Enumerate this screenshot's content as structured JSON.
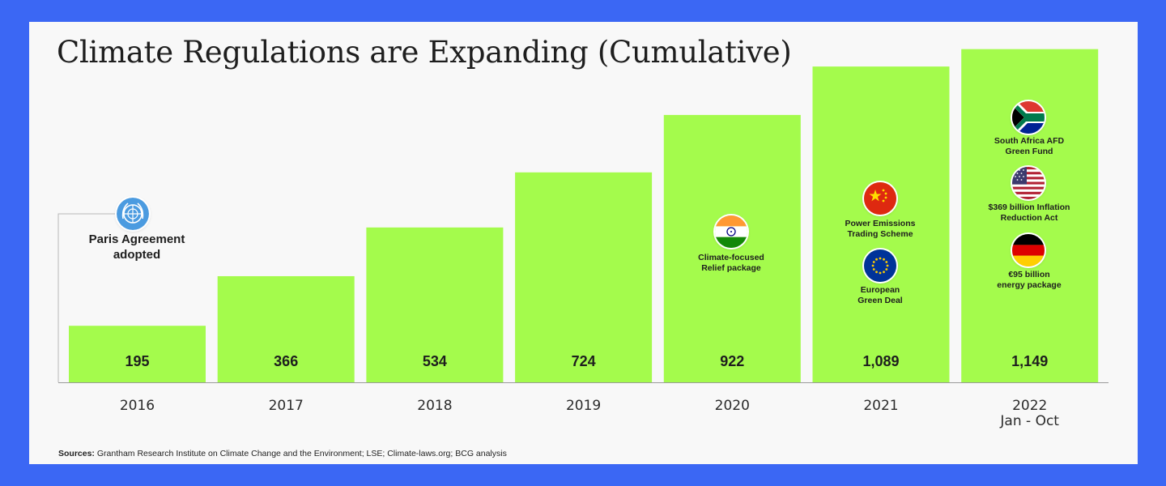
{
  "title": "Climate Regulations are Expanding (Cumulative)",
  "colors": {
    "background": "#3b67f4",
    "card": "#f8f8f8",
    "bar": "#a4fb4c",
    "text": "#1e1e1e"
  },
  "chart_data": {
    "type": "bar",
    "categories": [
      "2016",
      "2017",
      "2018",
      "2019",
      "2020",
      "2021",
      "2022"
    ],
    "category_sublabels": [
      "",
      "",
      "",
      "",
      "",
      "",
      "Jan - Oct"
    ],
    "values": [
      195,
      366,
      534,
      724,
      922,
      1089,
      1149
    ],
    "value_labels": [
      "195",
      "366",
      "534",
      "724",
      "922",
      "1,089",
      "1,149"
    ],
    "grid": false,
    "ylim": [
      0,
      1400
    ],
    "annotations": [
      {
        "category": "2016",
        "icon": "un-emblem-icon",
        "text": "Paris Agreement\nadopted"
      },
      {
        "category": "2020",
        "icon": "india-flag-icon",
        "text": "Climate-focused\nRelief package"
      },
      {
        "category": "2021",
        "icon": "china-flag-icon",
        "text": "Power Emissions\nTrading Scheme"
      },
      {
        "category": "2021",
        "icon": "eu-flag-icon",
        "text": "European\nGreen Deal"
      },
      {
        "category": "2022",
        "icon": "south-africa-flag-icon",
        "text": "South Africa AFD\nGreen Fund"
      },
      {
        "category": "2022",
        "icon": "usa-flag-icon",
        "text": "$369 billion Inflation\nReduction Act"
      },
      {
        "category": "2022",
        "icon": "germany-flag-icon",
        "text": "€95 billion\nenergy package"
      }
    ]
  },
  "sources": {
    "label": "Sources:",
    "text": " Grantham Research Institute on Climate Change and the Environment; LSE; Climate-laws.org; BCG analysis"
  }
}
